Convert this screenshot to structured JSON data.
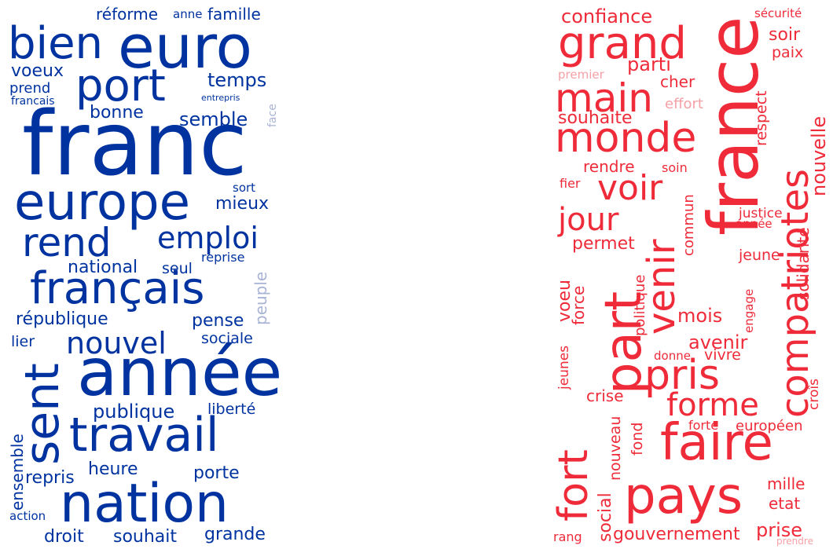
{
  "left_cloud": {
    "color": "#0033a0",
    "light_color": "#a8b3d6",
    "words": [
      "euro",
      "bien",
      "port",
      "franc",
      "europe",
      "rend",
      "emploi",
      "français",
      "année",
      "sent",
      "travail",
      "nation",
      "nouvel",
      "république",
      "national",
      "seul",
      "reprise",
      "peuple",
      "pense",
      "sociale",
      "lier",
      "publique",
      "liberté",
      "ensemble",
      "repris",
      "heure",
      "porte",
      "action",
      "droit",
      "souhait",
      "grande",
      "réforme",
      "anne",
      "famille",
      "voeux",
      "prend",
      "francais",
      "entrepris",
      "temps",
      "semble",
      "bonne",
      "face",
      "sort",
      "mieux"
    ]
  },
  "right_cloud": {
    "color": "#ef2b3a",
    "light_color": "#f6a0a6",
    "words": [
      "confiance",
      "sécurité",
      "grand",
      "france",
      "soir",
      "paix",
      "premier",
      "parti",
      "cher",
      "main",
      "effort",
      "respect",
      "souhaite",
      "monde",
      "compatriotes",
      "nouvelle",
      "rendre",
      "soin",
      "fier",
      "voir",
      "jour",
      "venir",
      "commun",
      "justice",
      "année",
      "part",
      "permet",
      "jeune",
      "solidarité",
      "politique",
      "engage",
      "voeu",
      "force",
      "mois",
      "pris",
      "avenir",
      "jeunes",
      "donne",
      "vivre",
      "croîs",
      "crise",
      "forme",
      "fort",
      "nouveau",
      "fond",
      "social",
      "faire",
      "forte",
      "européen",
      "pays",
      "mille",
      "etat",
      "prise",
      "rang",
      "gouvernement",
      "prendre"
    ]
  }
}
